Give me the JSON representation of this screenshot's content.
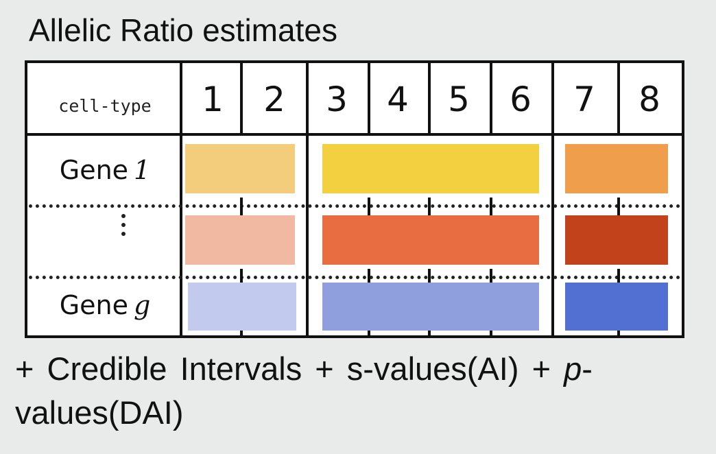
{
  "title": "Allelic Ratio estimates",
  "header": {
    "label": "cell-type",
    "columns": [
      "1",
      "2",
      "3",
      "4",
      "5",
      "6",
      "7",
      "8"
    ]
  },
  "rows": [
    {
      "label": "Gene",
      "index": "1",
      "colors": [
        "#f3cd7c",
        "#f3d03f",
        "#ef9f4c"
      ]
    },
    {
      "label": "⋮",
      "index": "",
      "colors": [
        "#f1b9a2",
        "#e86d40",
        "#c2431b"
      ]
    },
    {
      "label": "Gene",
      "index": "g",
      "colors": [
        "#c2caee",
        "#8f9fdd",
        "#5270d2"
      ]
    }
  ],
  "groups": [
    "1-2",
    "3-6",
    "7-8"
  ],
  "footer": {
    "part1": "+ Credible  Intervals  + s-values(AI)  + ",
    "p_italic": "p",
    "part2": "-values(DAI)"
  }
}
